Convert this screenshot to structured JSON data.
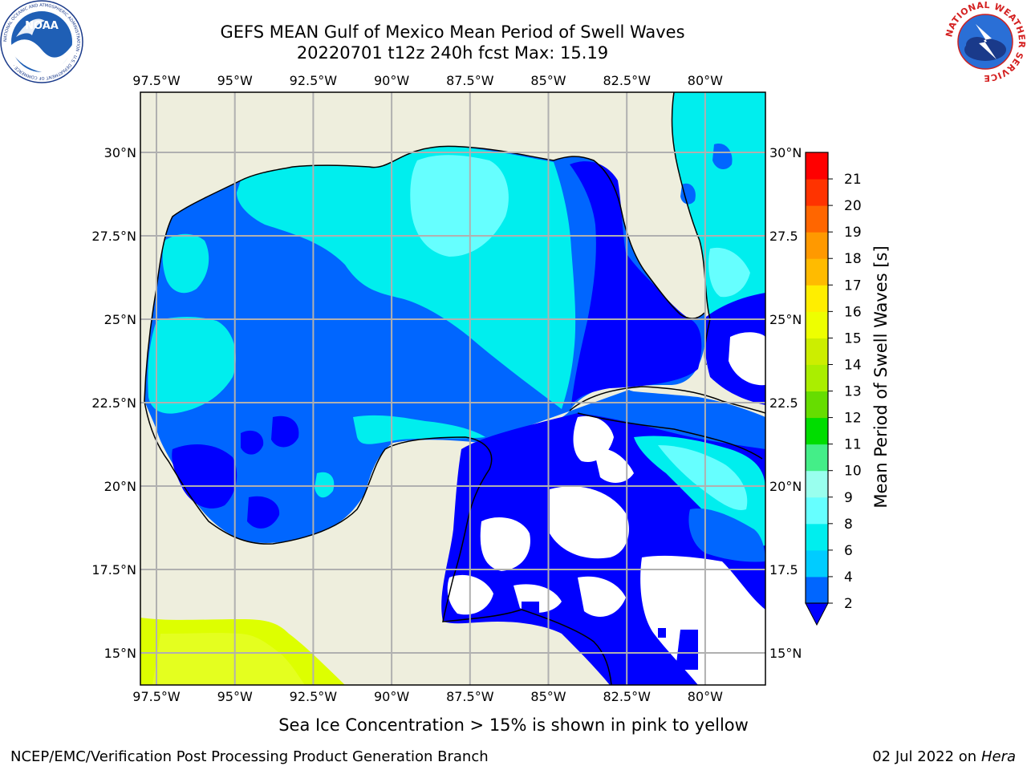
{
  "title_line1": "GEFS MEAN Gulf of Mexico Mean Period of Swell Waves",
  "title_line2": "20220701 t12z 240h fcst   Max: 15.19",
  "logos": {
    "left_icon": "noaa-logo",
    "left_text": "NOAA",
    "left_ring_text": "NATIONAL OCEANIC AND ATMOSPHERIC ADMINISTRATION · U.S. DEPARTMENT OF COMMERCE ·",
    "right_icon": "nws-logo",
    "right_ring_text": "NATIONAL WEATHER SERVICE"
  },
  "axes": {
    "lon_labels": [
      "97.5°W",
      "95°W",
      "92.5°W",
      "90°W",
      "87.5°W",
      "85°W",
      "82.5°W",
      "80°W"
    ],
    "lat_labels_left": [
      "30°N",
      "27.5°N",
      "25°N",
      "22.5°N",
      "20°N",
      "17.5°N",
      "15°N"
    ],
    "lat_labels_right": [
      "30°N",
      "27.5",
      "25°N",
      "22.5",
      "20°N",
      "17.5",
      "15°N"
    ]
  },
  "colorbar": {
    "label": "Mean Period of Swell Waves [s]",
    "ticks": [
      "2",
      "4",
      "6",
      "8",
      "9",
      "10",
      "11",
      "12",
      "13",
      "14",
      "15",
      "16",
      "17",
      "18",
      "19",
      "20",
      "21"
    ],
    "colors": [
      "#0066ff",
      "#00ccff",
      "#00eeee",
      "#66ffff",
      "#99ffee",
      "#44ee88",
      "#00dd00",
      "#66dd00",
      "#aaee00",
      "#ccee00",
      "#eeff00",
      "#ffee00",
      "#ffbb00",
      "#ff9900",
      "#ff6600",
      "#ff3300",
      "#ff0000"
    ],
    "extend_color": "#0000ff"
  },
  "palette": {
    "land": "#eeeedd",
    "ocean_missing": "#ffffff",
    "grid": "#b0b0b0",
    "sea_ice": "#ddff00"
  },
  "footer": {
    "caption": "Sea Ice Concentration > 15% is shown in pink to yellow",
    "credit": "NCEP/EMC/Verification Post Processing Product Generation Branch",
    "date": "02 Jul 2022 on ",
    "host": "Hera"
  }
}
